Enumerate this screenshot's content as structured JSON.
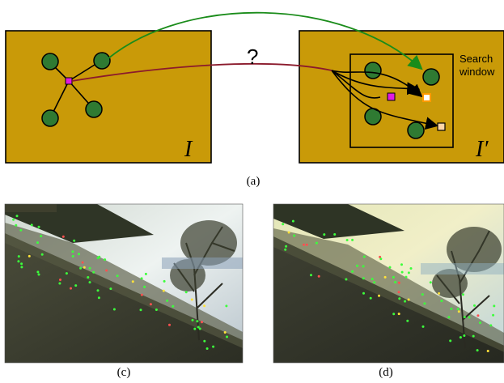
{
  "diagram": {
    "question_mark": "?",
    "left_image_label": "I",
    "right_image_label": "I′",
    "search_window_label_line1": "Search",
    "search_window_label_line2": "window",
    "caption_a": "(a)"
  },
  "photos": {
    "caption_c": "(c)",
    "caption_d": "(d)"
  },
  "colors": {
    "panel_fill": "#c99a08",
    "node_fill": "#2f7a32",
    "center_node": "#e01be0",
    "green_arrow": "#1a8c1a",
    "red_arrow": "#8b1a2c",
    "candidate_orange": "#ff9a00",
    "candidate_peach": "#ffd6a6"
  }
}
